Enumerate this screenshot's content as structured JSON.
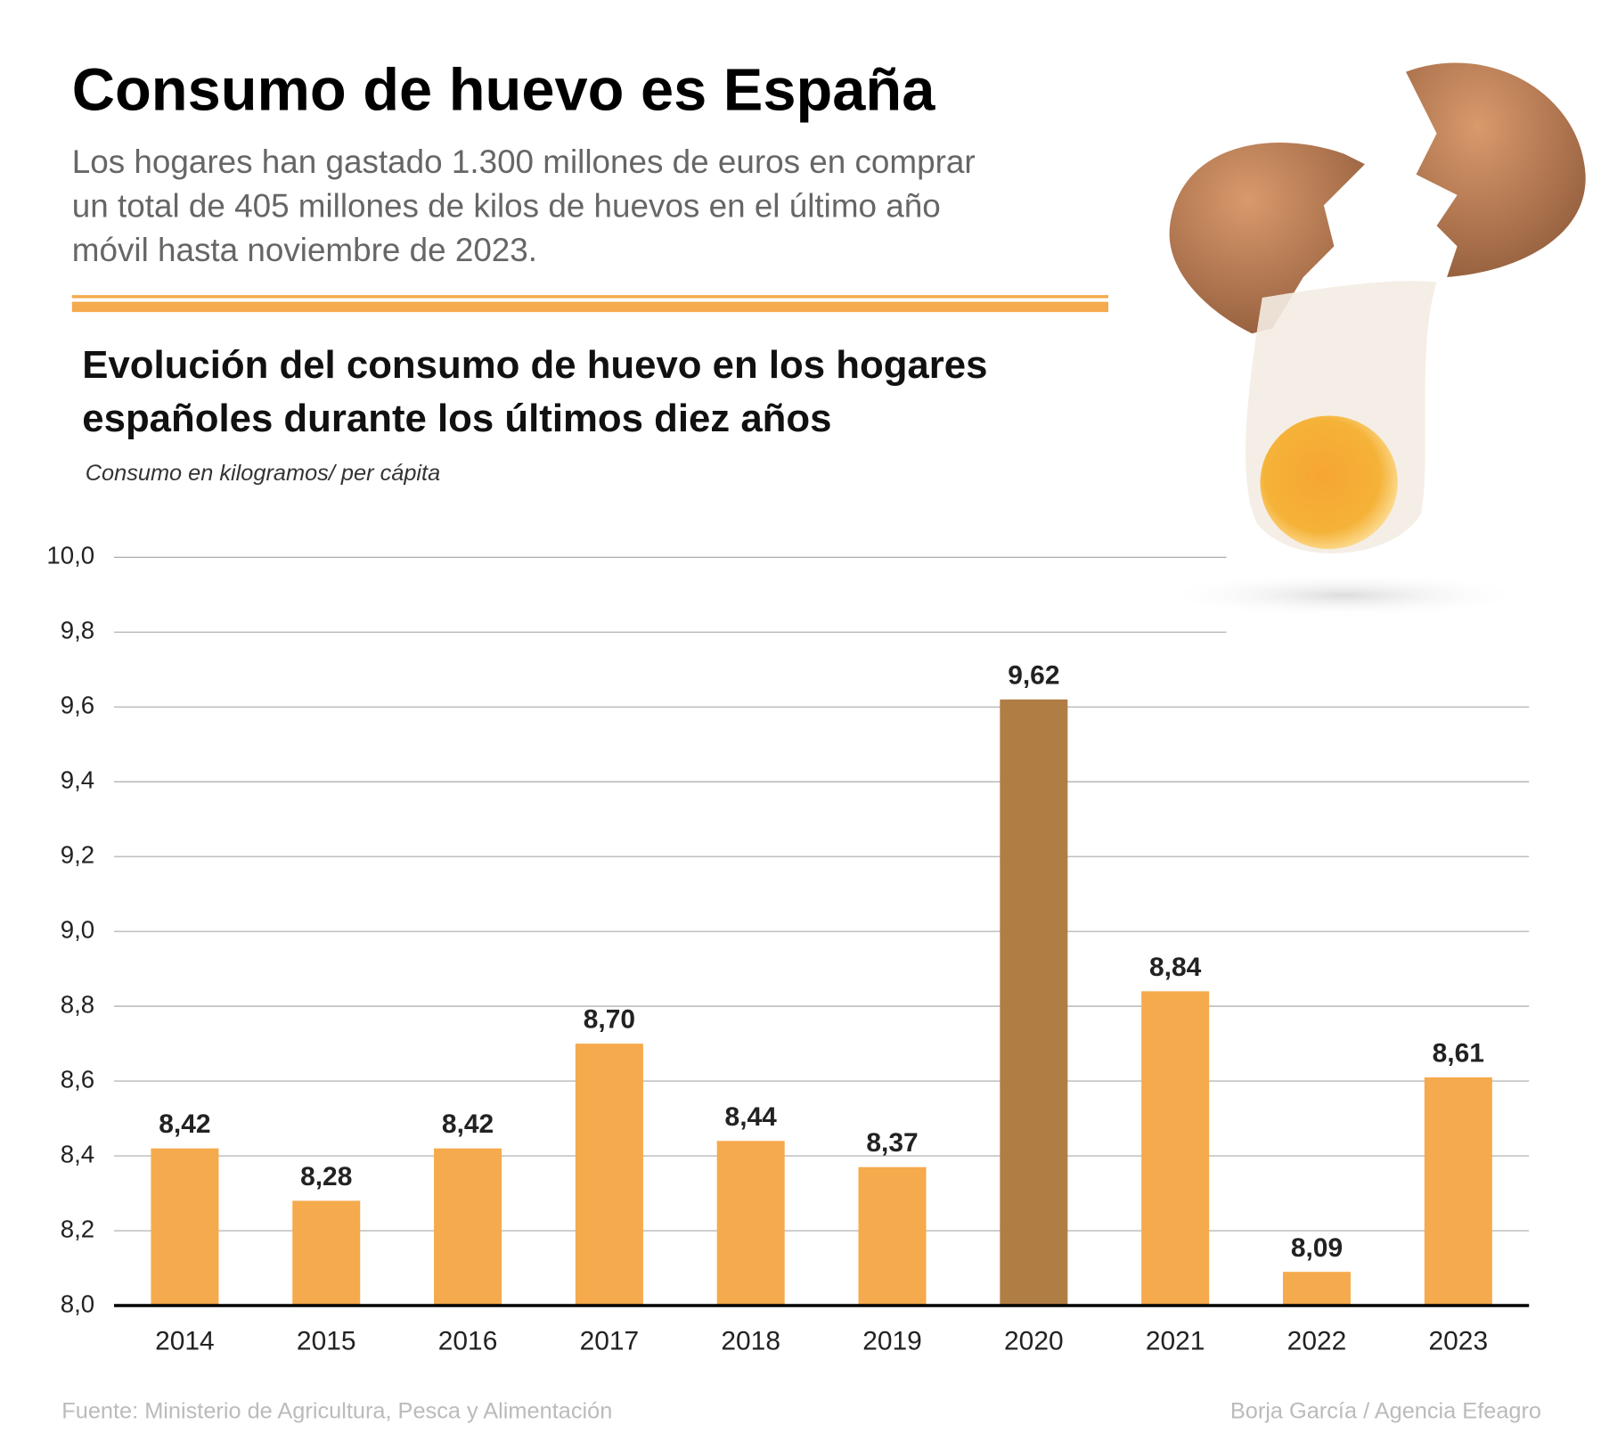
{
  "chart_data": {
    "type": "bar",
    "title": "Consumo de huevo es España",
    "subtitle_lines": [
      "Los hogares han gastado 1.300 millones de euros en comprar",
      "un total de 405 millones de kilos de huevos en el último año",
      "móvil hasta noviembre de 2023."
    ],
    "chart_title_lines": [
      "Evolución del consumo de huevo en los hogares",
      "españoles durante los últimos diez años"
    ],
    "y_label": "Consumo en kilogramos/ per cápita",
    "categories": [
      "2014",
      "2015",
      "2016",
      "2017",
      "2018",
      "2019",
      "2020",
      "2021",
      "2022",
      "2023"
    ],
    "values": [
      8.42,
      8.28,
      8.42,
      8.7,
      8.44,
      8.37,
      9.62,
      8.84,
      8.09,
      8.61
    ],
    "value_labels": [
      "8,42",
      "8,28",
      "8,42",
      "8,70",
      "8,44",
      "8,37",
      "9,62",
      "8,84",
      "8,09",
      "8,61"
    ],
    "colors": [
      "#f5aa4d",
      "#f5aa4d",
      "#f5aa4d",
      "#f5aa4d",
      "#f5aa4d",
      "#f5aa4d",
      "#b07d45",
      "#f5aa4d",
      "#f5aa4d",
      "#f5aa4d"
    ],
    "ylim": [
      8.0,
      10.0
    ],
    "yticks": [
      {
        "value": 8.0,
        "label": "8,0"
      },
      {
        "value": 8.2,
        "label": "8,2"
      },
      {
        "value": 8.4,
        "label": "8,4"
      },
      {
        "value": 8.6,
        "label": "8,6"
      },
      {
        "value": 8.8,
        "label": "8,8"
      },
      {
        "value": 9.0,
        "label": "9,0"
      },
      {
        "value": 9.2,
        "label": "9,2"
      },
      {
        "value": 9.4,
        "label": "9,4"
      },
      {
        "value": 9.6,
        "label": "9,6"
      },
      {
        "value": 9.8,
        "label": "9,8"
      },
      {
        "value": 10.0,
        "label": "10,0"
      }
    ],
    "grid": true,
    "source": "Fuente: Ministerio de Agricultura, Pesca y Alimentación",
    "credit": "Borja García / Agencia Efeagro"
  }
}
